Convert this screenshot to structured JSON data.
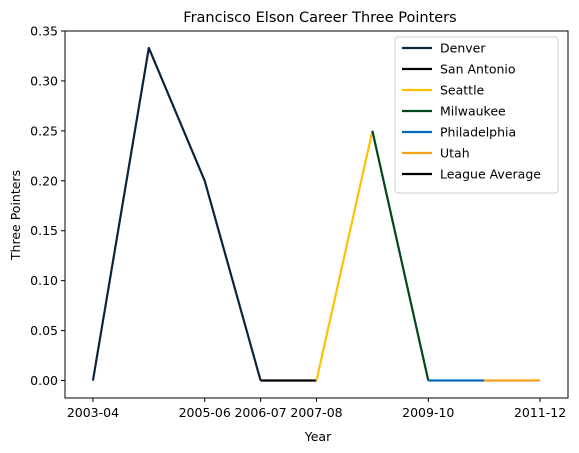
{
  "chart_data": {
    "type": "line",
    "title": "Francisco Elson Career Three Pointers",
    "xlabel": "Year",
    "ylabel": "Three Pointers",
    "x_categories": [
      "2003-04",
      "2004-05",
      "2005-06",
      "2006-07",
      "2007-08",
      "2008-09",
      "2009-10",
      "2010-11",
      "2011-12"
    ],
    "x_tick_labels": [
      "2003-04",
      "2005-06",
      "2006-07",
      "2007-08",
      "2009-10",
      "2011-12"
    ],
    "x_tick_positions": [
      "2003-04",
      "2005-06",
      "2006-07",
      "2007-08",
      "2009-10",
      "2011-12"
    ],
    "ylim": [
      -0.0175,
      0.35
    ],
    "y_ticks": [
      0.0,
      0.05,
      0.1,
      0.15,
      0.2,
      0.25,
      0.3,
      0.35
    ],
    "y_tick_labels": [
      "0.00",
      "0.05",
      "0.10",
      "0.15",
      "0.20",
      "0.25",
      "0.30",
      "0.35"
    ],
    "grid": false,
    "legend_position": "top-right",
    "series": [
      {
        "name": "Denver",
        "color": "#0E2240",
        "points": [
          [
            "2003-04",
            0.0
          ],
          [
            "2004-05",
            0.333
          ],
          [
            "2005-06",
            0.2
          ],
          [
            "2006-07",
            0.0
          ]
        ]
      },
      {
        "name": "San Antonio",
        "color": "#000000",
        "points": [
          [
            "2006-07",
            0.0
          ],
          [
            "2007-08",
            0.0
          ]
        ]
      },
      {
        "name": "Seattle",
        "color": "#FFC200",
        "points": [
          [
            "2007-08",
            0.0
          ],
          [
            "2008-09",
            0.25
          ]
        ]
      },
      {
        "name": "Milwaukee",
        "color": "#00471B",
        "points": [
          [
            "2008-09",
            0.25
          ],
          [
            "2009-10",
            0.0
          ]
        ]
      },
      {
        "name": "Philadelphia",
        "color": "#006BB6",
        "points": [
          [
            "2009-10",
            0.0
          ],
          [
            "2010-11",
            0.0
          ]
        ]
      },
      {
        "name": "Utah",
        "color": "#F9A01B",
        "points": [
          [
            "2010-11",
            0.0
          ],
          [
            "2011-12",
            0.0
          ]
        ]
      },
      {
        "name": "League Average",
        "color": "#000000",
        "points": []
      }
    ]
  }
}
